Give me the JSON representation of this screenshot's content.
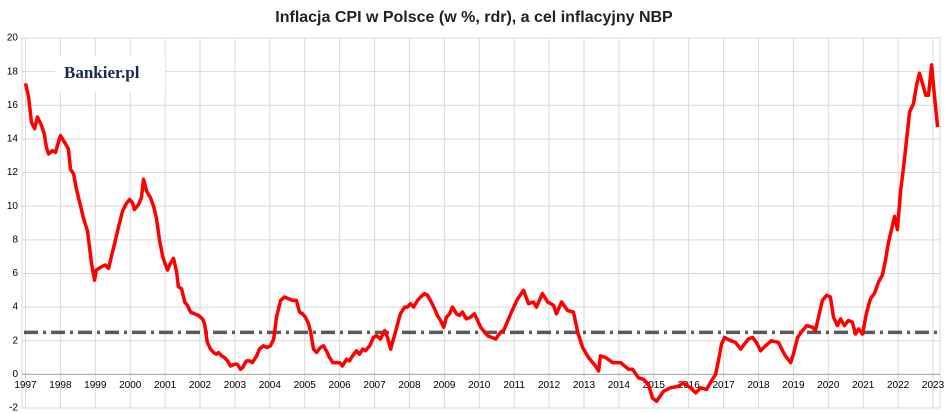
{
  "chart_data": {
    "type": "line",
    "title": "Inflacja CPI w Polsce (w %, rdr), a cel inflacyjny NBP",
    "logo": "Bankier.pl",
    "x": [
      1997.0,
      1997.09,
      1997.17,
      1997.26,
      1997.34,
      1997.46,
      1997.54,
      1997.6,
      1997.66,
      1997.77,
      1997.86,
      1998.0,
      1998.12,
      1998.23,
      1998.29,
      1998.38,
      1998.46,
      1998.58,
      1998.66,
      1998.78,
      1998.89,
      1998.98,
      1999.03,
      1999.18,
      1999.29,
      1999.38,
      1999.46,
      1999.58,
      1999.66,
      1999.78,
      1999.87,
      1999.98,
      2000.07,
      2000.12,
      2000.24,
      2000.32,
      2000.38,
      2000.47,
      2000.58,
      2000.67,
      2000.75,
      2000.84,
      2000.93,
      2001.01,
      2001.07,
      2001.15,
      2001.24,
      2001.33,
      2001.38,
      2001.47,
      2001.56,
      2001.64,
      2001.73,
      2001.84,
      2001.96,
      2002.07,
      2002.13,
      2002.21,
      2002.3,
      2002.39,
      2002.47,
      2002.53,
      2002.62,
      2002.7,
      2002.79,
      2002.87,
      2002.99,
      2003.07,
      2003.16,
      2003.22,
      2003.33,
      2003.42,
      2003.5,
      2003.62,
      2003.7,
      2003.82,
      2003.91,
      2004.02,
      2004.11,
      2004.19,
      2004.31,
      2004.42,
      2004.54,
      2004.65,
      2004.76,
      2004.85,
      2004.94,
      2005.02,
      2005.11,
      2005.17,
      2005.25,
      2005.34,
      2005.45,
      2005.54,
      2005.62,
      2005.71,
      2005.8,
      2005.91,
      2006.0,
      2006.08,
      2006.2,
      2006.28,
      2006.37,
      2006.48,
      2006.57,
      2006.66,
      2006.74,
      2006.86,
      2006.97,
      2007.06,
      2007.17,
      2007.29,
      2007.37,
      2007.46,
      2007.57,
      2007.66,
      2007.74,
      2007.86,
      2007.94,
      2008.03,
      2008.12,
      2008.23,
      2008.32,
      2008.43,
      2008.52,
      2008.6,
      2008.72,
      2008.8,
      2008.89,
      2008.98,
      2009.06,
      2009.15,
      2009.23,
      2009.35,
      2009.43,
      2009.52,
      2009.63,
      2009.75,
      2009.86,
      2010.04,
      2010.24,
      2010.47,
      2010.61,
      2010.7,
      2010.9,
      2011.1,
      2011.27,
      2011.41,
      2011.55,
      2011.64,
      2011.81,
      2011.96,
      2012.13,
      2012.21,
      2012.36,
      2012.53,
      2012.7,
      2012.82,
      2012.96,
      2013.13,
      2013.33,
      2013.42,
      2013.47,
      2013.62,
      2013.82,
      2014.05,
      2014.28,
      2014.39,
      2014.56,
      2014.71,
      2014.85,
      2014.96,
      2015.08,
      2015.28,
      2015.48,
      2015.71,
      2015.85,
      2016.05,
      2016.2,
      2016.34,
      2016.51,
      2016.68,
      2016.77,
      2016.85,
      2016.94,
      2017.03,
      2017.2,
      2017.34,
      2017.49,
      2017.6,
      2017.71,
      2017.83,
      2017.94,
      2018.06,
      2018.2,
      2018.37,
      2018.57,
      2018.69,
      2018.77,
      2018.92,
      2019.0,
      2019.12,
      2019.26,
      2019.38,
      2019.55,
      2019.63,
      2019.72,
      2019.83,
      2019.95,
      2020.06,
      2020.15,
      2020.26,
      2020.35,
      2020.46,
      2020.58,
      2020.69,
      2020.78,
      2020.87,
      2020.98,
      2021.1,
      2021.21,
      2021.32,
      2021.44,
      2021.55,
      2021.64,
      2021.72,
      2021.81,
      2021.9,
      2021.98,
      2022.07,
      2022.16,
      2022.24,
      2022.33,
      2022.44,
      2022.53,
      2022.61,
      2022.7,
      2022.79,
      2022.87,
      2022.96,
      2023.04,
      2023.13
    ],
    "series": [
      {
        "color": "#ff0000",
        "values": [
          17.3,
          16.5,
          15.0,
          14.6,
          15.3,
          14.8,
          14.3,
          13.5,
          13.1,
          13.3,
          13.2,
          14.2,
          13.8,
          13.4,
          12.2,
          11.9,
          11.0,
          10.0,
          9.3,
          8.5,
          6.6,
          5.6,
          6.2,
          6.4,
          6.5,
          6.3,
          7.0,
          8.0,
          8.7,
          9.7,
          10.1,
          10.4,
          10.2,
          9.8,
          10.1,
          10.5,
          11.6,
          10.9,
          10.5,
          10.0,
          9.3,
          8.0,
          7.0,
          6.5,
          6.2,
          6.6,
          6.9,
          6.1,
          5.2,
          5.1,
          4.3,
          4.1,
          3.7,
          3.6,
          3.5,
          3.3,
          3.0,
          1.9,
          1.5,
          1.3,
          1.2,
          1.3,
          1.1,
          1.0,
          0.8,
          0.5,
          0.6,
          0.6,
          0.3,
          0.4,
          0.8,
          0.8,
          0.7,
          1.1,
          1.5,
          1.7,
          1.6,
          1.7,
          2.1,
          3.4,
          4.4,
          4.6,
          4.5,
          4.4,
          4.4,
          3.7,
          3.6,
          3.4,
          3.0,
          2.5,
          1.5,
          1.3,
          1.6,
          1.7,
          1.4,
          1.0,
          0.7,
          0.7,
          0.7,
          0.5,
          0.9,
          0.8,
          1.1,
          1.4,
          1.2,
          1.5,
          1.4,
          1.7,
          2.2,
          2.3,
          2.1,
          2.6,
          2.2,
          1.5,
          2.3,
          3.0,
          3.6,
          4.0,
          4.0,
          4.2,
          4.0,
          4.4,
          4.6,
          4.8,
          4.7,
          4.4,
          3.9,
          3.5,
          3.2,
          2.8,
          3.4,
          3.6,
          4.0,
          3.6,
          3.5,
          3.7,
          3.3,
          3.4,
          3.6,
          2.8,
          2.3,
          2.1,
          2.5,
          2.6,
          3.6,
          4.5,
          5.0,
          4.2,
          4.3,
          4.0,
          4.8,
          4.3,
          4.1,
          3.6,
          4.3,
          3.8,
          3.7,
          2.5,
          1.6,
          1.0,
          0.5,
          0.2,
          1.1,
          1.0,
          0.7,
          0.7,
          0.3,
          0.3,
          -0.2,
          -0.3,
          -0.6,
          -1.4,
          -1.6,
          -1.0,
          -0.8,
          -0.7,
          -0.5,
          -0.8,
          -1.1,
          -0.8,
          -0.9,
          -0.3,
          0.0,
          0.8,
          1.8,
          2.2,
          2.0,
          1.9,
          1.5,
          1.8,
          2.1,
          2.2,
          1.9,
          1.4,
          1.7,
          2.0,
          1.9,
          1.4,
          1.1,
          0.7,
          1.2,
          2.2,
          2.6,
          2.9,
          2.8,
          2.6,
          3.4,
          4.4,
          4.7,
          4.6,
          3.4,
          2.9,
          3.3,
          2.9,
          3.2,
          3.1,
          2.4,
          2.7,
          2.4,
          3.7,
          4.5,
          4.8,
          5.5,
          5.9,
          6.8,
          7.8,
          8.6,
          9.4,
          8.6,
          10.9,
          12.4,
          13.9,
          15.6,
          16.1,
          17.2,
          17.9,
          17.3,
          16.6,
          16.6,
          18.4,
          16.6,
          14.7
        ]
      }
    ],
    "reference_line": {
      "value": 2.5,
      "color": "#595959",
      "style": "dash-dot"
    },
    "xlim": [
      1996.9,
      2023.2
    ],
    "xticks": [
      1997,
      1998,
      1999,
      2000,
      2001,
      2002,
      2003,
      2004,
      2005,
      2006,
      2007,
      2008,
      2009,
      2010,
      2011,
      2012,
      2013,
      2014,
      2015,
      2016,
      2017,
      2018,
      2019,
      2020,
      2021,
      2022,
      2023
    ],
    "ylim": [
      -2,
      20
    ],
    "yticks": [
      -2,
      0,
      2,
      4,
      6,
      8,
      10,
      12,
      14,
      16,
      18,
      20
    ],
    "grid": true
  }
}
